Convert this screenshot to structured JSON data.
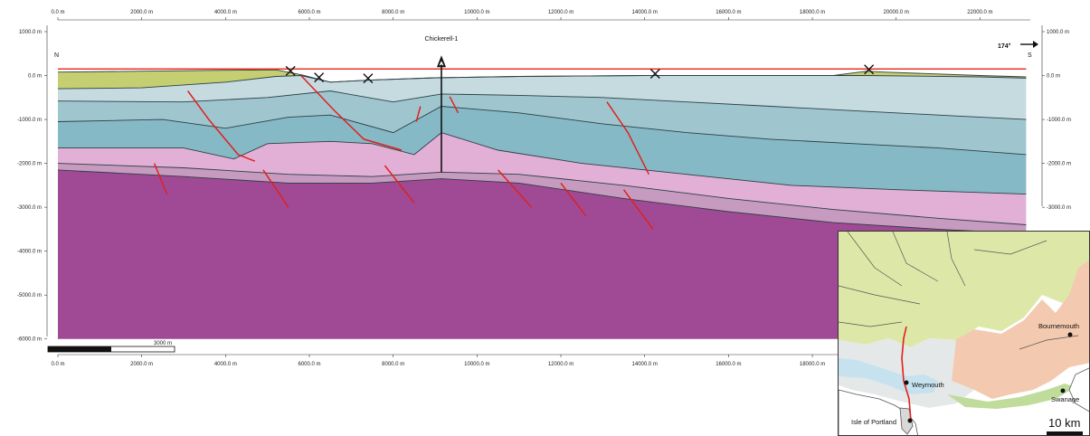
{
  "section": {
    "well_label": "Chickerell-1",
    "well_x": 9150,
    "end_left": "N",
    "end_right": "S",
    "azimuth": "174°",
    "scale_bar_label": "3000 m",
    "x_axis": {
      "min": 0,
      "max": 23200,
      "tick_values": [
        0,
        2000,
        4000,
        6000,
        8000,
        10000,
        12000,
        14000,
        16000,
        18000,
        20000,
        22000
      ],
      "top_labels": [
        "0.0 m",
        "2000.0 m",
        "4000.0 m",
        "6000.0 m",
        "8000.0 m",
        "10000.0 m",
        "12000.0 m",
        "14000.0 m",
        "16000.0 m",
        "18000.0 m",
        "20000.0 m",
        "22000.0 m"
      ],
      "bottom_labels": [
        "0.0 m",
        "2000.0 m",
        "4000.0 m",
        "6000.0 m",
        "8000.0 m",
        "10000.0 m",
        "12000.0 m",
        "14000.0 m",
        "16000.0 m",
        "18000.0 m"
      ]
    },
    "y_axis": {
      "min": -6500,
      "max": 1000,
      "tick_values": [
        1000,
        0,
        -1000,
        -2000,
        -3000,
        -4000,
        -5000,
        -6000
      ],
      "left_labels": [
        "1000.0 m",
        "0.0 m",
        "-1000.0 m",
        "-2000.0 m",
        "-3000.0 m",
        "-4000.0 m",
        "-5000.0 m",
        "-6000.0 m"
      ],
      "right_labels": [
        "1000.0 m",
        "0.0 m",
        "-1000.0 m",
        "-2000.0 m",
        "-3000.0 m"
      ]
    },
    "colors": {
      "surface_line": "#e8352a",
      "fault": "#e0201c",
      "basement": "#a04a96",
      "pink_unit": "#e2b0d6",
      "lower_pink": "#c79ac0",
      "teal_lower": "#86b9c6",
      "teal_mid": "#9fc6cf",
      "teal_upper": "#c5dbe0",
      "top_green": "#c5cf72"
    },
    "chart_data": {
      "type": "cross-section",
      "x_units": "m",
      "y_units": "m",
      "xlim": [
        0,
        23200
      ],
      "ylim": [
        -6500,
        1000
      ],
      "surface_level": 150,
      "section_floor": -6000,
      "green_top": [
        [
          0,
          80
        ],
        [
          2000,
          100
        ],
        [
          4000,
          120
        ],
        [
          5200,
          130
        ],
        [
          5800,
          20
        ],
        [
          6500,
          -150
        ],
        [
          7500,
          -100
        ],
        [
          9000,
          -50
        ],
        [
          11000,
          -20
        ],
        [
          14000,
          0
        ],
        [
          18500,
          0
        ],
        [
          19300,
          100
        ],
        [
          19700,
          80
        ],
        [
          22000,
          0
        ],
        [
          23100,
          -30
        ]
      ],
      "green_base": [
        [
          0,
          -300
        ],
        [
          2000,
          -280
        ],
        [
          4000,
          -150
        ],
        [
          5200,
          -20
        ],
        [
          5800,
          0
        ],
        [
          6500,
          -150
        ],
        [
          7500,
          -100
        ],
        [
          9000,
          -50
        ],
        [
          11000,
          -20
        ],
        [
          14000,
          0
        ],
        [
          18500,
          0
        ],
        [
          19300,
          0
        ],
        [
          22000,
          -30
        ],
        [
          23100,
          -60
        ]
      ],
      "upper_teal_base": [
        [
          0,
          -580
        ],
        [
          3000,
          -600
        ],
        [
          5000,
          -500
        ],
        [
          6500,
          -350
        ],
        [
          8000,
          -600
        ],
        [
          9150,
          -420
        ],
        [
          11000,
          -450
        ],
        [
          13000,
          -500
        ],
        [
          15000,
          -600
        ],
        [
          17000,
          -700
        ],
        [
          19000,
          -800
        ],
        [
          21000,
          -900
        ],
        [
          23100,
          -1000
        ]
      ],
      "mid_teal_base": [
        [
          0,
          -1050
        ],
        [
          2500,
          -1000
        ],
        [
          4000,
          -1200
        ],
        [
          5500,
          -950
        ],
        [
          6500,
          -900
        ],
        [
          8000,
          -1300
        ],
        [
          9150,
          -700
        ],
        [
          11000,
          -850
        ],
        [
          13000,
          -1100
        ],
        [
          15000,
          -1300
        ],
        [
          17000,
          -1450
        ],
        [
          19000,
          -1550
        ],
        [
          21000,
          -1650
        ],
        [
          23100,
          -1800
        ]
      ],
      "teal_base": [
        [
          0,
          -1650
        ],
        [
          3000,
          -1650
        ],
        [
          4200,
          -1900
        ],
        [
          5000,
          -1550
        ],
        [
          6500,
          -1500
        ],
        [
          7500,
          -1550
        ],
        [
          8500,
          -1800
        ],
        [
          9150,
          -1300
        ],
        [
          10500,
          -1700
        ],
        [
          12500,
          -2000
        ],
        [
          15000,
          -2250
        ],
        [
          17500,
          -2500
        ],
        [
          20000,
          -2600
        ],
        [
          23100,
          -2700
        ]
      ],
      "pink_base": [
        [
          0,
          -2000
        ],
        [
          3000,
          -2100
        ],
        [
          5500,
          -2250
        ],
        [
          7500,
          -2300
        ],
        [
          9150,
          -2200
        ],
        [
          11000,
          -2250
        ],
        [
          13500,
          -2500
        ],
        [
          16000,
          -2800
        ],
        [
          18500,
          -3050
        ],
        [
          21000,
          -3250
        ],
        [
          23100,
          -3400
        ]
      ],
      "lower_pink_base": [
        [
          0,
          -2150
        ],
        [
          3000,
          -2300
        ],
        [
          5500,
          -2450
        ],
        [
          7500,
          -2450
        ],
        [
          9150,
          -2350
        ],
        [
          11000,
          -2450
        ],
        [
          13500,
          -2800
        ],
        [
          16000,
          -3100
        ],
        [
          18500,
          -3350
        ],
        [
          21000,
          -3500
        ],
        [
          23100,
          -3600
        ]
      ],
      "faults": [
        [
          [
            3100,
            -350
          ],
          [
            3600,
            -1000
          ],
          [
            4300,
            -1800
          ],
          [
            4700,
            -1950
          ]
        ],
        [
          [
            5800,
            0
          ],
          [
            6600,
            -800
          ],
          [
            7300,
            -1450
          ],
          [
            8200,
            -1700
          ]
        ],
        [
          [
            13100,
            -600
          ],
          [
            13600,
            -1300
          ],
          [
            14100,
            -2250
          ]
        ],
        [
          [
            8650,
            -700
          ],
          [
            8550,
            -1050
          ]
        ],
        [
          [
            9350,
            -480
          ],
          [
            9550,
            -850
          ]
        ],
        [
          [
            2300,
            -2000
          ],
          [
            2600,
            -2700
          ]
        ],
        [
          [
            4900,
            -2150
          ],
          [
            5500,
            -3000
          ]
        ],
        [
          [
            7800,
            -2050
          ],
          [
            8500,
            -2900
          ]
        ],
        [
          [
            10500,
            -2150
          ],
          [
            11300,
            -3000
          ]
        ],
        [
          [
            12000,
            -2450
          ],
          [
            12600,
            -3200
          ]
        ],
        [
          [
            13500,
            -2600
          ],
          [
            14200,
            -3500
          ]
        ]
      ],
      "surface_markers_x": [
        5550,
        6230,
        7400,
        14250,
        19350
      ]
    }
  },
  "inset_map": {
    "towns": [
      {
        "name": "Bournemouth"
      },
      {
        "name": "Weymouth"
      },
      {
        "name": "Swanage"
      },
      {
        "name": "Isle of Portland"
      }
    ],
    "scale_label": "10 km"
  }
}
